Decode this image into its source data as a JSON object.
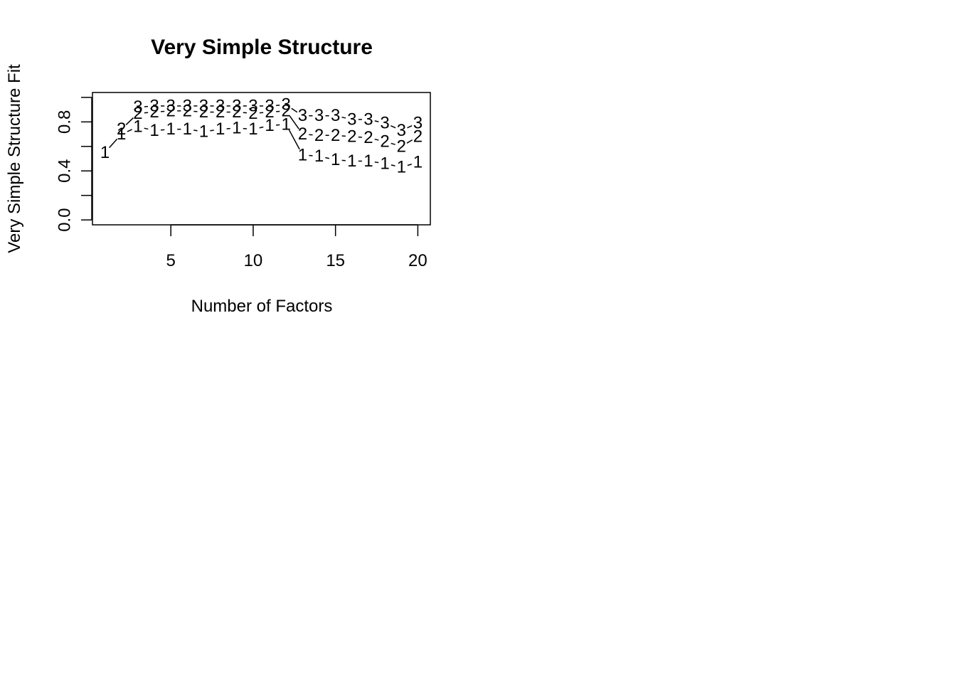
{
  "chart_data": {
    "type": "line",
    "title": "Very Simple Structure",
    "xlabel": "Number of Factors",
    "ylabel": "Very Simple Structure Fit",
    "xlim": [
      0.24,
      20.76
    ],
    "ylim": [
      -0.04,
      1.04
    ],
    "x_ticks": [
      5,
      10,
      15,
      20
    ],
    "x_tick_labels": [
      "5",
      "10",
      "15",
      "20"
    ],
    "y_ticks": [
      0.0,
      0.2,
      0.4,
      0.6,
      0.8,
      1.0
    ],
    "y_tick_labels": [
      "0.0",
      "",
      "0.4",
      "",
      "0.8",
      ""
    ],
    "grid": false,
    "legend": "none",
    "x": [
      1,
      2,
      3,
      4,
      5,
      6,
      7,
      8,
      9,
      10,
      11,
      12,
      13,
      14,
      15,
      16,
      17,
      18,
      19,
      20
    ],
    "series": [
      {
        "name": "1",
        "values": [
          0.55,
          0.7,
          0.76,
          0.73,
          0.74,
          0.74,
          0.72,
          0.74,
          0.75,
          0.74,
          0.77,
          0.78,
          0.53,
          0.52,
          0.49,
          0.48,
          0.48,
          0.46,
          0.43,
          0.47
        ]
      },
      {
        "name": "2",
        "values": [
          null,
          0.74,
          0.87,
          0.88,
          0.89,
          0.89,
          0.88,
          0.88,
          0.88,
          0.87,
          0.88,
          0.89,
          0.7,
          0.69,
          0.69,
          0.68,
          0.67,
          0.64,
          0.6,
          0.68
        ]
      },
      {
        "name": "3",
        "values": [
          null,
          null,
          0.92,
          0.93,
          0.93,
          0.93,
          0.93,
          0.93,
          0.93,
          0.93,
          0.93,
          0.94,
          0.85,
          0.85,
          0.85,
          0.82,
          0.82,
          0.79,
          0.73,
          0.79
        ]
      }
    ]
  }
}
